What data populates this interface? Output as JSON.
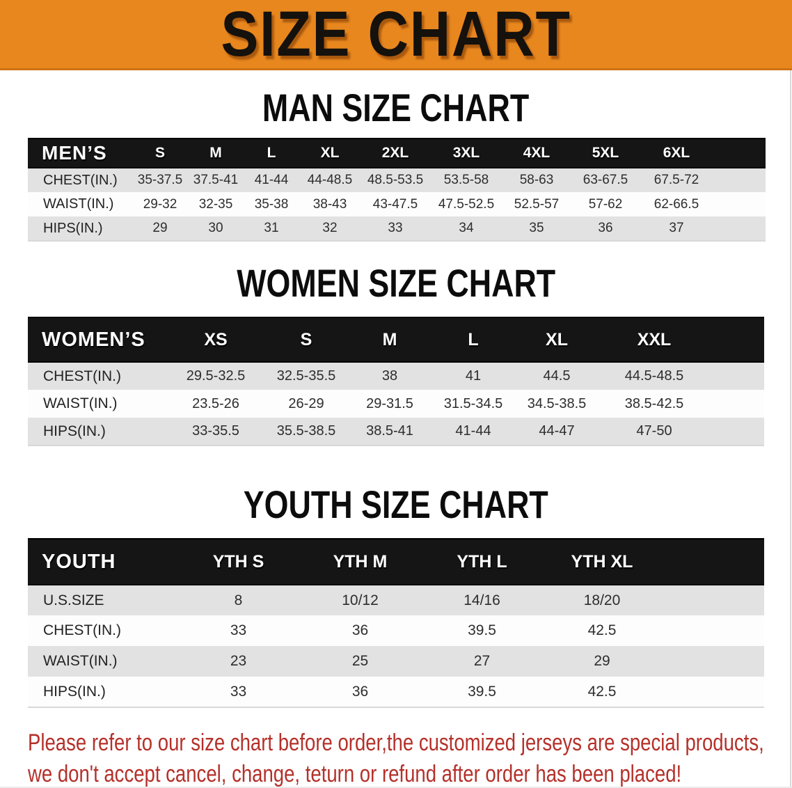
{
  "banner": {
    "title": "SIZE CHART"
  },
  "colors": {
    "banner_orange": "#e8871e",
    "table_header_black": "#151515",
    "row_stripe_gray": "#e2e2e2",
    "disclaimer_red": "#b5302a"
  },
  "sections": [
    {
      "heading": "MAN SIZE CHART",
      "table": {
        "header_label": "MEN’S",
        "sizes": [
          "S",
          "M",
          "L",
          "XL",
          "2XL",
          "3XL",
          "4XL",
          "5XL",
          "6XL"
        ],
        "rows": [
          {
            "label": "CHEST(IN.)",
            "values": [
              "35-37.5",
              "37.5-41",
              "41-44",
              "44-48.5",
              "48.5-53.5",
              "53.5-58",
              "58-63",
              "63-67.5",
              "67.5-72"
            ]
          },
          {
            "label": "WAIST(IN.)",
            "values": [
              "29-32",
              "32-35",
              "35-38",
              "38-43",
              "43-47.5",
              "47.5-52.5",
              "52.5-57",
              "57-62",
              "62-66.5"
            ]
          },
          {
            "label": "HIPS(IN.)",
            "values": [
              "29",
              "30",
              "31",
              "32",
              "33",
              "34",
              "35",
              "36",
              "37"
            ]
          }
        ]
      }
    },
    {
      "heading": "WOMEN SIZE CHART",
      "table": {
        "header_label": "WOMEN’S",
        "sizes": [
          "XS",
          "S",
          "M",
          "L",
          "XL",
          "XXL"
        ],
        "rows": [
          {
            "label": "CHEST(IN.)",
            "values": [
              "29.5-32.5",
              "32.5-35.5",
              "38",
              "41",
              "44.5",
              "44.5-48.5"
            ]
          },
          {
            "label": "WAIST(IN.)",
            "values": [
              "23.5-26",
              "26-29",
              "29-31.5",
              "31.5-34.5",
              "34.5-38.5",
              "38.5-42.5"
            ]
          },
          {
            "label": "HIPS(IN.)",
            "values": [
              "33-35.5",
              "35.5-38.5",
              "38.5-41",
              "41-44",
              "44-47",
              "47-50"
            ]
          }
        ]
      }
    },
    {
      "heading": "YOUTH SIZE CHART",
      "table": {
        "header_label": "YOUTH",
        "sizes": [
          "YTH S",
          "YTH M",
          "YTH L",
          "YTH XL"
        ],
        "rows": [
          {
            "label": "U.S.SIZE",
            "values": [
              "8",
              "10/12",
              "14/16",
              "18/20"
            ]
          },
          {
            "label": "CHEST(IN.)",
            "values": [
              "33",
              "36",
              "39.5",
              "42.5"
            ]
          },
          {
            "label": "WAIST(IN.)",
            "values": [
              "23",
              "25",
              "27",
              "29"
            ]
          },
          {
            "label": "HIPS(IN.)",
            "values": [
              "33",
              "36",
              "39.5",
              "42.5"
            ]
          }
        ]
      }
    }
  ],
  "disclaimer": {
    "line1": "Please refer to our size chart before order,the customized jerseys are special products,",
    "line2": "we don't accept cancel, change, teturn or refund after order has been placed!"
  }
}
